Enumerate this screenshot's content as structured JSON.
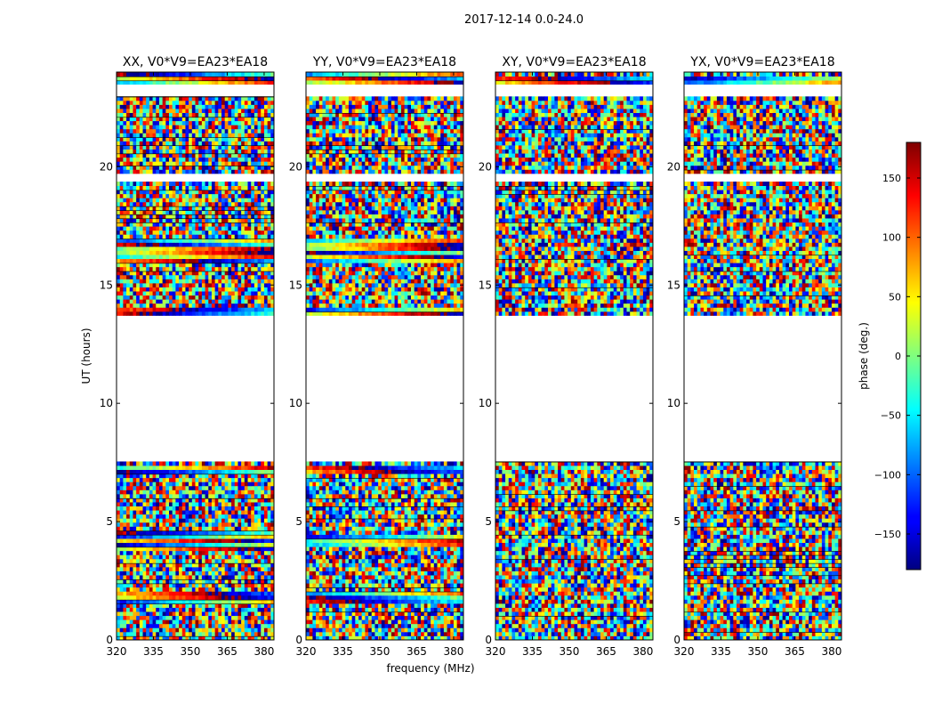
{
  "figure_title": "2017-12-14 0.0-24.0",
  "x_axis_label": "frequency (MHz)",
  "y_axis_label": "UT (hours)",
  "colorbar": {
    "label": "phase (deg.)",
    "range": [
      -180,
      180
    ],
    "ticks": [
      150,
      100,
      50,
      0,
      -50,
      -100,
      -150
    ],
    "tick_labels": [
      "150",
      "100",
      "50",
      "0",
      "−50",
      "−100",
      "−150"
    ],
    "colormap": "jet"
  },
  "chart_data": [
    {
      "type": "heatmap",
      "title": "XX, V0*V9=EA23*EA18",
      "x_range": [
        320,
        384
      ],
      "y_range": [
        0,
        24
      ],
      "x_ticks": [
        320,
        335,
        350,
        365,
        380
      ],
      "y_ticks": [
        0,
        5,
        10,
        15,
        20
      ],
      "blank_ut_ranges": [
        [
          7.5,
          13.7
        ],
        [
          19.3,
          19.7
        ],
        [
          22.9,
          23.4
        ]
      ],
      "coherent_phase_ut_ranges": [
        [
          16.0,
          16.9
        ],
        [
          13.8,
          14.0
        ],
        [
          23.3,
          24.0
        ],
        [
          7.1,
          7.4
        ],
        [
          1.6,
          2.0
        ],
        [
          3.8,
          4.6
        ]
      ]
    },
    {
      "type": "heatmap",
      "title": "YY, V0*V9=EA23*EA18",
      "x_range": [
        320,
        384
      ],
      "y_range": [
        0,
        24
      ],
      "x_ticks": [
        320,
        335,
        350,
        365,
        380
      ],
      "y_ticks": [
        0,
        5,
        10,
        15,
        20
      ],
      "blank_ut_ranges": [
        [
          7.5,
          13.7
        ],
        [
          19.3,
          19.7
        ],
        [
          22.9,
          23.4
        ]
      ],
      "coherent_phase_ut_ranges": [
        [
          16.0,
          16.9
        ],
        [
          13.8,
          14.0
        ],
        [
          23.3,
          24.0
        ],
        [
          7.1,
          7.4
        ],
        [
          1.6,
          2.0
        ],
        [
          4.0,
          4.5
        ]
      ]
    },
    {
      "type": "heatmap",
      "title": "XY, V0*V9=EA23*EA18",
      "x_range": [
        320,
        384
      ],
      "y_range": [
        0,
        24
      ],
      "x_ticks": [
        320,
        335,
        350,
        365,
        380
      ],
      "y_ticks": [
        0,
        5,
        10,
        15,
        20
      ],
      "blank_ut_ranges": [
        [
          7.5,
          13.7
        ],
        [
          19.3,
          19.7
        ],
        [
          22.9,
          23.4
        ]
      ],
      "coherent_phase_ut_ranges": [
        [
          23.5,
          23.9
        ]
      ]
    },
    {
      "type": "heatmap",
      "title": "YX, V0*V9=EA23*EA18",
      "x_range": [
        320,
        384
      ],
      "y_range": [
        0,
        24
      ],
      "x_ticks": [
        320,
        335,
        350,
        365,
        380
      ],
      "y_ticks": [
        0,
        5,
        10,
        15,
        20
      ],
      "blank_ut_ranges": [
        [
          7.5,
          13.7
        ],
        [
          19.3,
          19.7
        ],
        [
          22.9,
          23.4
        ]
      ],
      "coherent_phase_ut_ranges": [
        [
          23.5,
          23.9
        ]
      ]
    }
  ]
}
